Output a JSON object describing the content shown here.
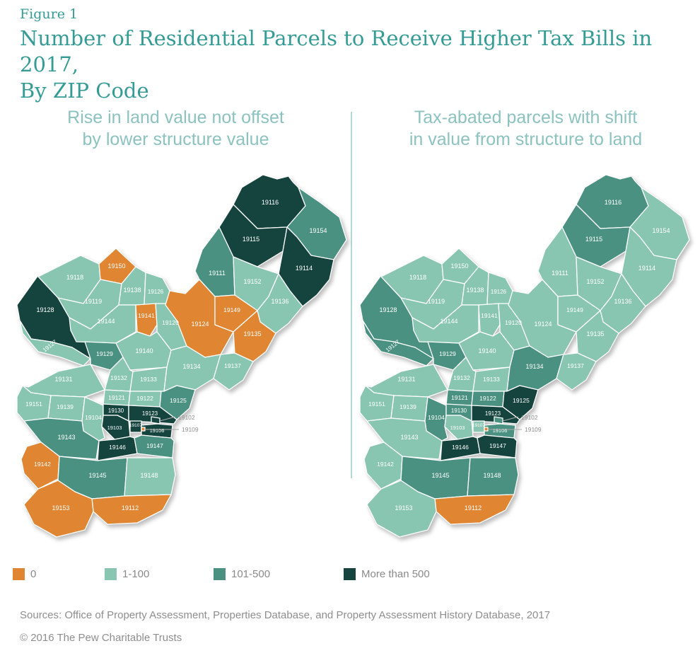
{
  "figure_label": "Figure 1",
  "title": {
    "line1": "Number of Residential Parcels to Receive Higher Tax Bills in 2017,",
    "line2": "By ZIP Code"
  },
  "panels": {
    "left": {
      "subtitle_line1": "Rise in land value not offset",
      "subtitle_line2": "by lower structure value"
    },
    "right": {
      "subtitle_line1": "Tax-abated parcels with shift",
      "subtitle_line2": "in value from structure to land"
    }
  },
  "colors": {
    "zero": "#E08531",
    "low": "#89C6B2",
    "mid": "#4A9181",
    "high": "#15443E",
    "title_teal": "#359B95",
    "subtitle_teal": "#8CC2BF",
    "gray_text": "#8E8E8E"
  },
  "legend": [
    {
      "key": "zero",
      "label": "0"
    },
    {
      "key": "low",
      "label": "1-100"
    },
    {
      "key": "mid",
      "label": "101-500"
    },
    {
      "key": "high",
      "label": "More than 500"
    }
  ],
  "maps": {
    "left": {
      "19102": "high",
      "19103": "high",
      "19104": "low",
      "19106": "high",
      "19107": "high",
      "19109": "zero",
      "19111": "mid",
      "19112": "zero",
      "19114": "high",
      "19115": "high",
      "19116": "high",
      "19118": "low",
      "19119": "low",
      "19120": "low",
      "19121": "low",
      "19122": "low",
      "19123": "high",
      "19124": "zero",
      "19125": "mid",
      "19126": "low",
      "19127": "low",
      "19128": "high",
      "19129": "mid",
      "19130": "high",
      "19131": "low",
      "19132": "low",
      "19133": "low",
      "19134": "low",
      "19135": "zero",
      "19136": "low",
      "19137": "low",
      "19138": "low",
      "19139": "low",
      "19140": "low",
      "19141": "zero",
      "19142": "zero",
      "19143": "mid",
      "19144": "low",
      "19145": "mid",
      "19146": "high",
      "19147": "mid",
      "19148": "low",
      "19149": "zero",
      "19150": "zero",
      "19151": "low",
      "19152": "low",
      "19153": "zero",
      "19154": "mid"
    },
    "right": {
      "19102": "mid",
      "19103": "low",
      "19104": "mid",
      "19106": "mid",
      "19107": "low",
      "19109": "zero",
      "19111": "low",
      "19112": "zero",
      "19114": "low",
      "19115": "mid",
      "19116": "mid",
      "19118": "low",
      "19119": "low",
      "19120": "low",
      "19121": "mid",
      "19122": "mid",
      "19123": "high",
      "19124": "low",
      "19125": "high",
      "19126": "low",
      "19127": "mid",
      "19128": "mid",
      "19129": "mid",
      "19130": "mid",
      "19131": "low",
      "19132": "low",
      "19133": "low",
      "19134": "mid",
      "19135": "low",
      "19136": "low",
      "19137": "low",
      "19138": "low",
      "19139": "low",
      "19140": "low",
      "19141": "low",
      "19142": "low",
      "19143": "low",
      "19144": "low",
      "19145": "mid",
      "19146": "high",
      "19147": "high",
      "19148": "mid",
      "19149": "low",
      "19150": "low",
      "19151": "low",
      "19152": "low",
      "19153": "low",
      "19154": "low"
    }
  },
  "callout_zips": [
    "19102",
    "19109"
  ],
  "sources": "Sources: Office of Property Assessment, Properties Database, and Property Assessment History Database, 2017",
  "copyright": "© 2016 The Pew Charitable Trusts"
}
